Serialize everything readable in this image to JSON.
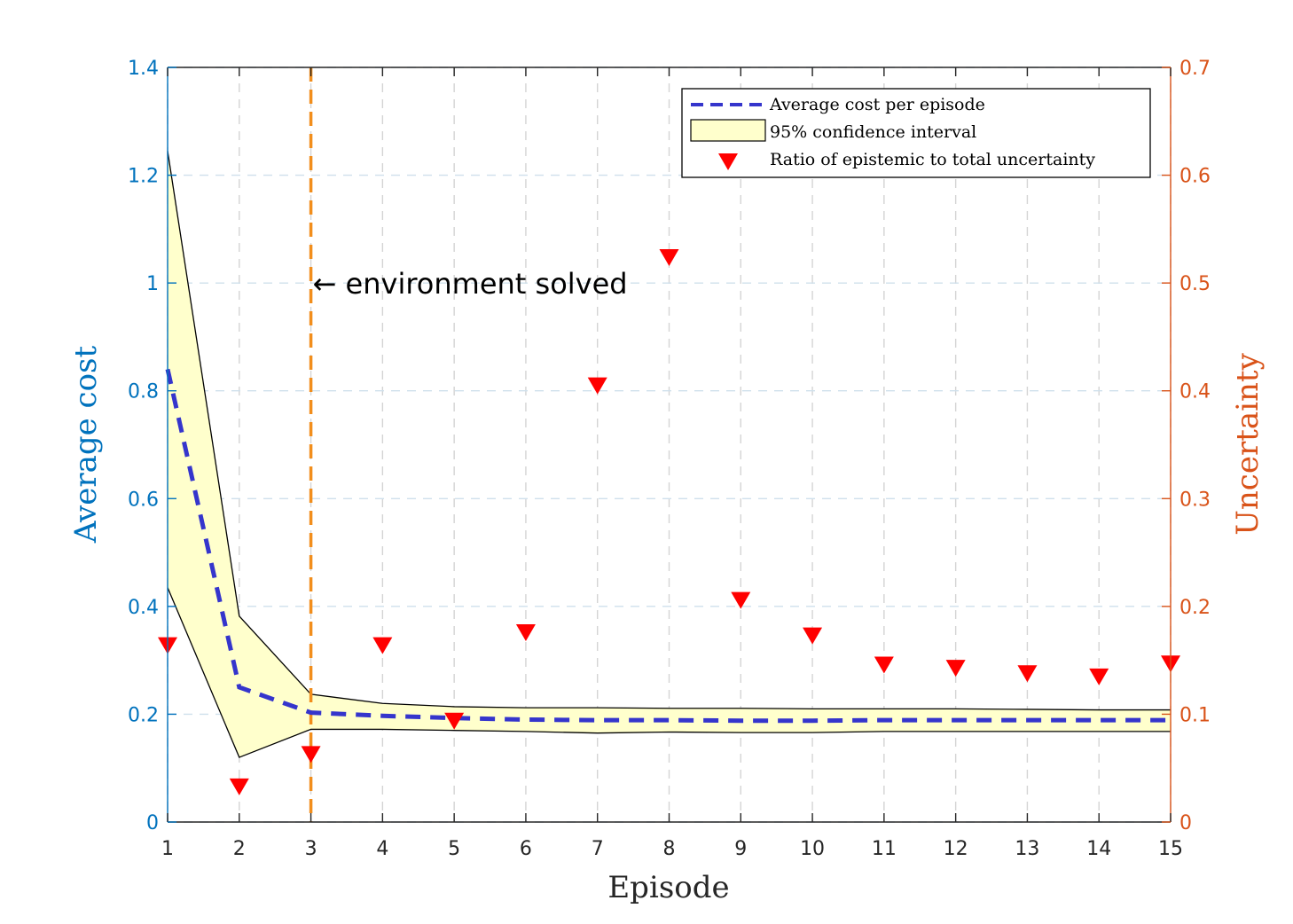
{
  "chart_data": {
    "type": "line",
    "x": [
      1,
      2,
      3,
      4,
      5,
      6,
      7,
      8,
      9,
      10,
      11,
      12,
      13,
      14,
      15
    ],
    "xlim": [
      1,
      15
    ],
    "xlabel": "Episode",
    "ylabel_left": "Average cost",
    "ylabel_right": "Uncertainty",
    "ylim_left": [
      0,
      1.4
    ],
    "ylim_right": [
      0,
      0.7
    ],
    "yticks_left": [
      "0",
      "0.2",
      "0.4",
      "0.6",
      "0.8",
      "1",
      "1.2",
      "1.4"
    ],
    "yticks_right": [
      "0",
      "0.1",
      "0.2",
      "0.3",
      "0.4",
      "0.5",
      "0.6",
      "0.7"
    ],
    "xticks": [
      "1",
      "2",
      "3",
      "4",
      "5",
      "6",
      "7",
      "8",
      "9",
      "10",
      "11",
      "12",
      "13",
      "14",
      "15"
    ],
    "grid": true,
    "legend_position": "top-right",
    "series": [
      {
        "name": "Average cost per episode",
        "axis": "left",
        "style": "dashed",
        "color": "#3535CC",
        "values": [
          0.84,
          0.25,
          0.203,
          0.197,
          0.193,
          0.19,
          0.189,
          0.189,
          0.188,
          0.188,
          0.189,
          0.189,
          0.189,
          0.189,
          0.189
        ]
      },
      {
        "name": "95% confidence interval",
        "axis": "left",
        "style": "band",
        "color": "#FFFFCC",
        "upper": [
          1.245,
          0.382,
          0.237,
          0.22,
          0.214,
          0.212,
          0.212,
          0.211,
          0.211,
          0.21,
          0.21,
          0.21,
          0.209,
          0.208,
          0.208
        ],
        "lower": [
          0.435,
          0.12,
          0.172,
          0.172,
          0.17,
          0.168,
          0.165,
          0.167,
          0.166,
          0.166,
          0.168,
          0.168,
          0.168,
          0.168,
          0.168
        ]
      },
      {
        "name": "Ratio of epistemic to total uncertainty",
        "axis": "right",
        "style": "markers",
        "color": "#FF0000",
        "values": [
          0.164,
          0.033,
          0.063,
          0.164,
          0.094,
          0.176,
          0.405,
          0.524,
          0.206,
          0.173,
          0.146,
          0.143,
          0.138,
          0.135,
          0.147
        ]
      }
    ],
    "annotation": {
      "text": "← environment solved",
      "x": 3,
      "y": 1.0,
      "vline_x": 3,
      "vline_color": "#F28E1C"
    }
  }
}
